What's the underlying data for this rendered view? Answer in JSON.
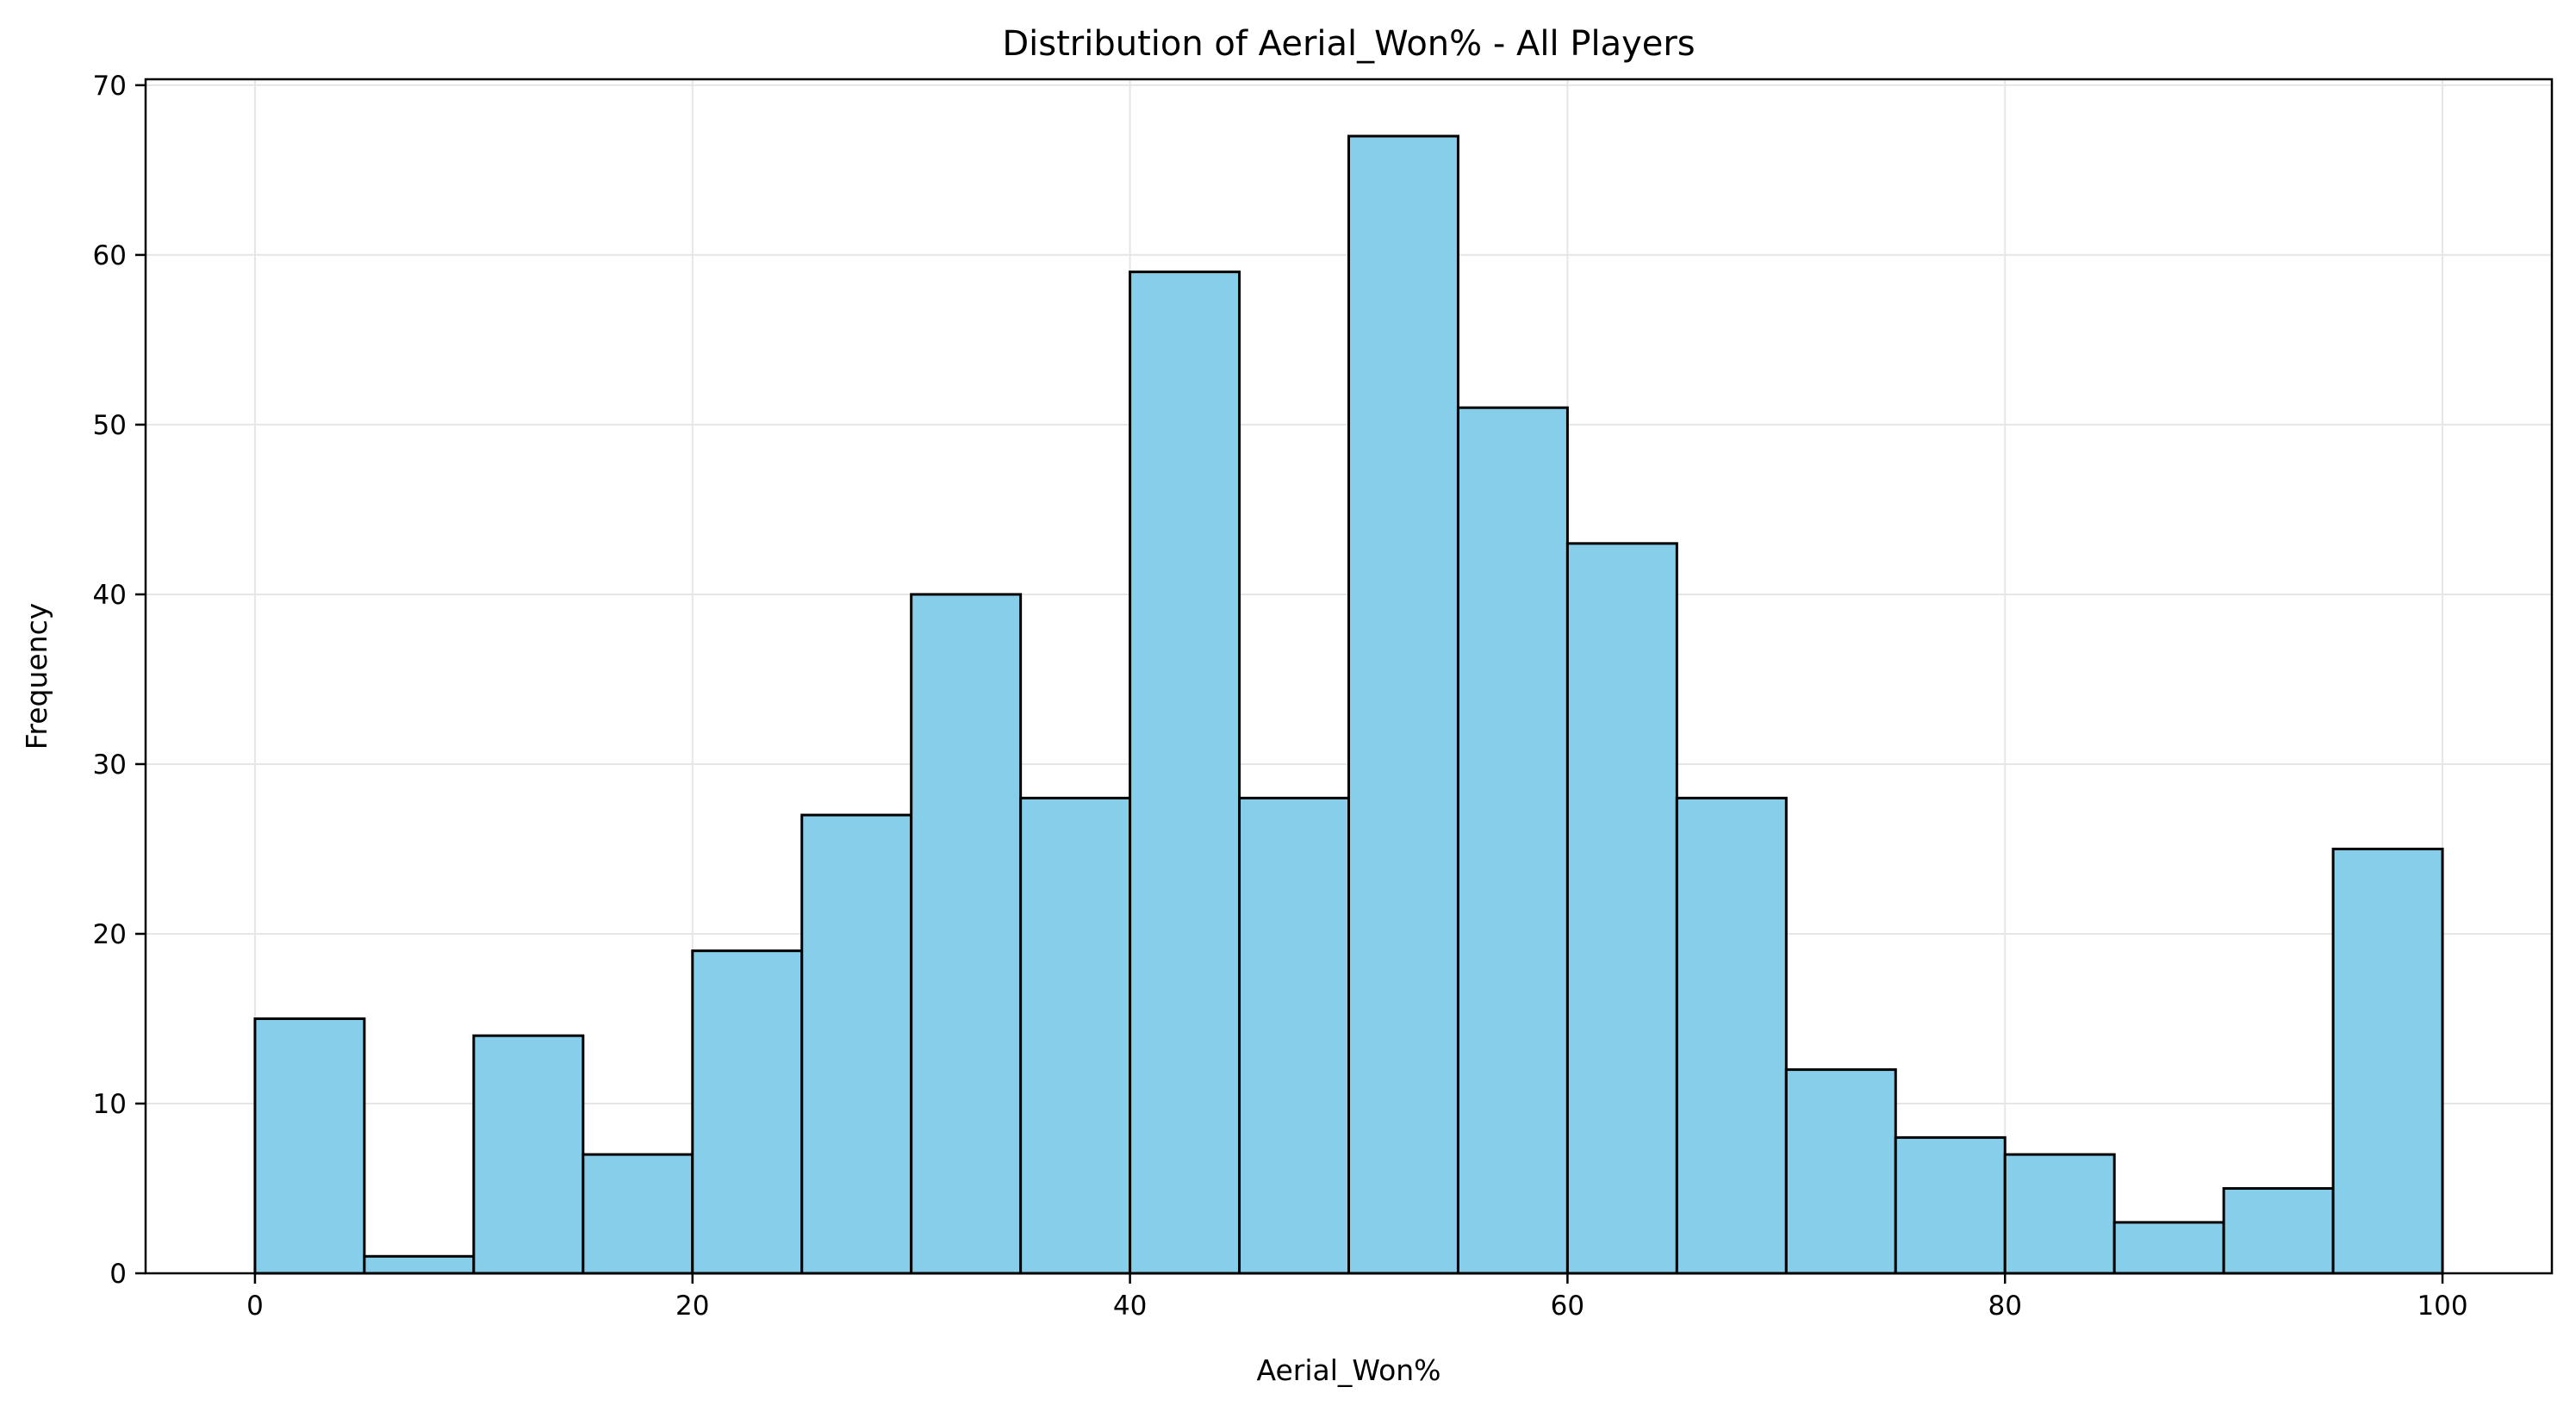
{
  "chart_data": {
    "type": "bar",
    "title": "Distribution of Aerial_Won% - All Players",
    "xlabel": "Aerial_Won%",
    "ylabel": "Frequency",
    "xlim": [
      -5,
      105
    ],
    "ylim": [
      0,
      70.35
    ],
    "xticks": [
      0,
      20,
      40,
      60,
      80,
      100
    ],
    "yticks": [
      0,
      10,
      20,
      30,
      40,
      50,
      60,
      70
    ],
    "grid": true,
    "bin_width": 5,
    "bins": [
      {
        "start": 0,
        "end": 5,
        "count": 15
      },
      {
        "start": 5,
        "end": 10,
        "count": 1
      },
      {
        "start": 10,
        "end": 15,
        "count": 14
      },
      {
        "start": 15,
        "end": 20,
        "count": 7
      },
      {
        "start": 20,
        "end": 25,
        "count": 19
      },
      {
        "start": 25,
        "end": 30,
        "count": 27
      },
      {
        "start": 30,
        "end": 35,
        "count": 40
      },
      {
        "start": 35,
        "end": 40,
        "count": 28
      },
      {
        "start": 40,
        "end": 45,
        "count": 59
      },
      {
        "start": 45,
        "end": 50,
        "count": 28
      },
      {
        "start": 50,
        "end": 55,
        "count": 67
      },
      {
        "start": 55,
        "end": 60,
        "count": 51
      },
      {
        "start": 60,
        "end": 65,
        "count": 43
      },
      {
        "start": 65,
        "end": 70,
        "count": 28
      },
      {
        "start": 70,
        "end": 75,
        "count": 12
      },
      {
        "start": 75,
        "end": 80,
        "count": 8
      },
      {
        "start": 80,
        "end": 85,
        "count": 7
      },
      {
        "start": 85,
        "end": 90,
        "count": 3
      },
      {
        "start": 90,
        "end": 95,
        "count": 5
      },
      {
        "start": 95,
        "end": 100,
        "count": 25
      }
    ],
    "colors": {
      "bar_fill": "#87CEEB",
      "bar_edge": "#000000",
      "grid": "#e6e6e6",
      "axis": "#000000"
    }
  }
}
